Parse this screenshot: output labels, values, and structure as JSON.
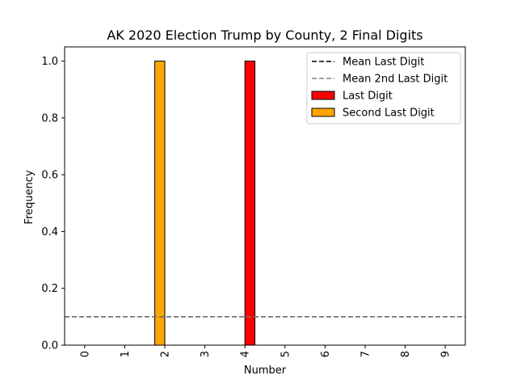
{
  "chart_data": {
    "type": "bar",
    "title": "AK 2020 Election Trump by County, 2 Final Digits",
    "xlabel": "Number",
    "ylabel": "Frequency",
    "categories": [
      "0",
      "1",
      "2",
      "3",
      "4",
      "5",
      "6",
      "7",
      "8",
      "9"
    ],
    "ylim": [
      0,
      1.05
    ],
    "yticks": [
      "0.0",
      "0.2",
      "0.4",
      "0.6",
      "0.8",
      "1.0"
    ],
    "grid": false,
    "legend_position": "top-right",
    "series": [
      {
        "name": "Last Digit",
        "color": "#ff0000",
        "values": [
          0,
          0,
          0,
          0,
          1,
          0,
          0,
          0,
          0,
          0
        ]
      },
      {
        "name": "Second Last Digit",
        "color": "#ffa500",
        "values": [
          0,
          0,
          1,
          0,
          0,
          0,
          0,
          0,
          0,
          0
        ]
      }
    ],
    "reference_lines": [
      {
        "name": "Mean Last Digit",
        "value": 0.1,
        "color": "#000000",
        "style": "dashed"
      },
      {
        "name": "Mean 2nd Last Digit",
        "value": 0.1,
        "color": "#808080",
        "style": "dashed"
      }
    ]
  }
}
